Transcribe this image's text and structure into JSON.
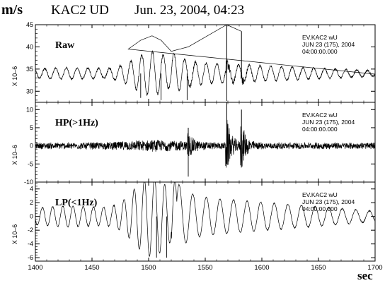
{
  "header": {
    "unit": "m/s",
    "station": "KAC2 UD",
    "datetime": "Jun. 23, 2004, 04:23"
  },
  "x_axis_unit": "sec",
  "chart_data": [
    {
      "type": "line",
      "panel_label": "Raw",
      "scale_label": "X 10–6",
      "info_lines": [
        "EV.KAC2   wU",
        "JUN 23 (175), 2004",
        "04:00:00.000"
      ],
      "xlim": [
        1400,
        1700
      ],
      "ylim": [
        27.5,
        45
      ],
      "yticks": [
        30,
        35,
        40,
        45
      ],
      "xticks": [
        1400,
        1450,
        1500,
        1550,
        1600,
        1650,
        1700
      ],
      "baseline": 34,
      "line_color": "#000000",
      "peaks": [
        {
          "x": 1482,
          "y": 39.5
        },
        {
          "x": 1493,
          "y": 41.5
        },
        {
          "x": 1503,
          "y": 42.5
        },
        {
          "x": 1511,
          "y": 41.5
        },
        {
          "x": 1520,
          "y": 39.0
        },
        {
          "x": 1535,
          "y": 40.0
        },
        {
          "x": 1569,
          "y": 45.0
        },
        {
          "x": 1582,
          "y": 43.5
        }
      ],
      "troughs": [
        {
          "x": 1493,
          "y": 28.5
        },
        {
          "x": 1511,
          "y": 28.0
        },
        {
          "x": 1534,
          "y": 28.0
        },
        {
          "x": 1569,
          "y": 27.8
        }
      ]
    },
    {
      "type": "line",
      "panel_label": "HP(>1Hz)",
      "scale_label": "X 10–6",
      "info_lines": [
        "EV.KAC2   wU",
        "JUN 23 (175), 2004",
        "04:00:00.000"
      ],
      "xlim": [
        1400,
        1700
      ],
      "ylim": [
        -10,
        12
      ],
      "yticks": [
        -10,
        -5,
        0,
        5,
        10
      ],
      "xticks": [
        1400,
        1450,
        1500,
        1550,
        1600,
        1650,
        1700
      ],
      "baseline": 0,
      "line_color": "#000000",
      "bursts": [
        {
          "x": 1535,
          "amp": 5.0
        },
        {
          "x": 1569,
          "amp": 12.0
        },
        {
          "x": 1582,
          "amp": 10.0
        }
      ],
      "troughs": [
        {
          "x": 1535,
          "y": -8.5
        },
        {
          "x": 1569,
          "y": -5.0
        }
      ]
    },
    {
      "type": "line",
      "panel_label": "LP(<1Hz)",
      "scale_label": "X 10–6",
      "info_lines": [
        "EV.KAC2   wU",
        "JUN 23 (175), 2004",
        "04:00:00.000"
      ],
      "xlim": [
        1400,
        1700
      ],
      "ylim": [
        -6.5,
        5
      ],
      "yticks": [
        -6,
        -4,
        -2,
        0,
        2,
        4
      ],
      "xticks": [
        1400,
        1450,
        1500,
        1550,
        1600,
        1650,
        1700
      ],
      "baseline": 0,
      "line_color": "#000000",
      "peaks": [
        {
          "x": 1503,
          "y": 4.5
        },
        {
          "x": 1511,
          "y": 4.5
        }
      ],
      "troughs": [
        {
          "x": 1507,
          "y": -6.0
        },
        {
          "x": 1516,
          "y": -6.0
        }
      ]
    }
  ]
}
